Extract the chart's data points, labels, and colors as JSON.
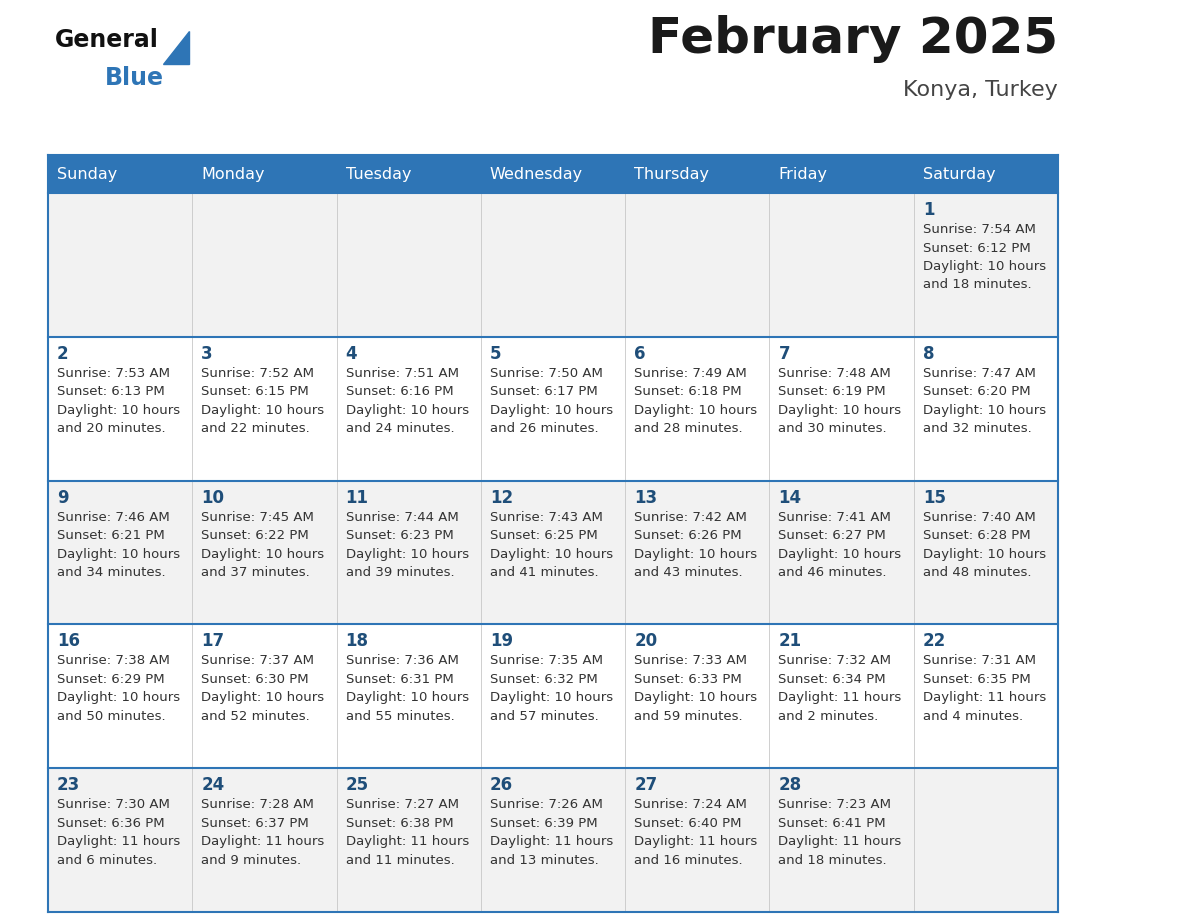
{
  "title": "February 2025",
  "location": "Konya, Turkey",
  "header_bg": "#2E75B6",
  "header_text": "#FFFFFF",
  "row_bg_odd": "#F2F2F2",
  "row_bg_even": "#FFFFFF",
  "border_color": "#2E75B6",
  "day_headers": [
    "Sunday",
    "Monday",
    "Tuesday",
    "Wednesday",
    "Thursday",
    "Friday",
    "Saturday"
  ],
  "title_color": "#1a1a1a",
  "location_color": "#444444",
  "day_num_color": "#1F4E79",
  "cell_text_color": "#333333",
  "calendar_data": [
    [
      null,
      null,
      null,
      null,
      null,
      null,
      {
        "day": "1",
        "sunrise": "7:54 AM",
        "sunset": "6:12 PM",
        "daylight_line1": "10 hours",
        "daylight_line2": "and 18 minutes."
      }
    ],
    [
      {
        "day": "2",
        "sunrise": "7:53 AM",
        "sunset": "6:13 PM",
        "daylight_line1": "10 hours",
        "daylight_line2": "and 20 minutes."
      },
      {
        "day": "3",
        "sunrise": "7:52 AM",
        "sunset": "6:15 PM",
        "daylight_line1": "10 hours",
        "daylight_line2": "and 22 minutes."
      },
      {
        "day": "4",
        "sunrise": "7:51 AM",
        "sunset": "6:16 PM",
        "daylight_line1": "10 hours",
        "daylight_line2": "and 24 minutes."
      },
      {
        "day": "5",
        "sunrise": "7:50 AM",
        "sunset": "6:17 PM",
        "daylight_line1": "10 hours",
        "daylight_line2": "and 26 minutes."
      },
      {
        "day": "6",
        "sunrise": "7:49 AM",
        "sunset": "6:18 PM",
        "daylight_line1": "10 hours",
        "daylight_line2": "and 28 minutes."
      },
      {
        "day": "7",
        "sunrise": "7:48 AM",
        "sunset": "6:19 PM",
        "daylight_line1": "10 hours",
        "daylight_line2": "and 30 minutes."
      },
      {
        "day": "8",
        "sunrise": "7:47 AM",
        "sunset": "6:20 PM",
        "daylight_line1": "10 hours",
        "daylight_line2": "and 32 minutes."
      }
    ],
    [
      {
        "day": "9",
        "sunrise": "7:46 AM",
        "sunset": "6:21 PM",
        "daylight_line1": "10 hours",
        "daylight_line2": "and 34 minutes."
      },
      {
        "day": "10",
        "sunrise": "7:45 AM",
        "sunset": "6:22 PM",
        "daylight_line1": "10 hours",
        "daylight_line2": "and 37 minutes."
      },
      {
        "day": "11",
        "sunrise": "7:44 AM",
        "sunset": "6:23 PM",
        "daylight_line1": "10 hours",
        "daylight_line2": "and 39 minutes."
      },
      {
        "day": "12",
        "sunrise": "7:43 AM",
        "sunset": "6:25 PM",
        "daylight_line1": "10 hours",
        "daylight_line2": "and 41 minutes."
      },
      {
        "day": "13",
        "sunrise": "7:42 AM",
        "sunset": "6:26 PM",
        "daylight_line1": "10 hours",
        "daylight_line2": "and 43 minutes."
      },
      {
        "day": "14",
        "sunrise": "7:41 AM",
        "sunset": "6:27 PM",
        "daylight_line1": "10 hours",
        "daylight_line2": "and 46 minutes."
      },
      {
        "day": "15",
        "sunrise": "7:40 AM",
        "sunset": "6:28 PM",
        "daylight_line1": "10 hours",
        "daylight_line2": "and 48 minutes."
      }
    ],
    [
      {
        "day": "16",
        "sunrise": "7:38 AM",
        "sunset": "6:29 PM",
        "daylight_line1": "10 hours",
        "daylight_line2": "and 50 minutes."
      },
      {
        "day": "17",
        "sunrise": "7:37 AM",
        "sunset": "6:30 PM",
        "daylight_line1": "10 hours",
        "daylight_line2": "and 52 minutes."
      },
      {
        "day": "18",
        "sunrise": "7:36 AM",
        "sunset": "6:31 PM",
        "daylight_line1": "10 hours",
        "daylight_line2": "and 55 minutes."
      },
      {
        "day": "19",
        "sunrise": "7:35 AM",
        "sunset": "6:32 PM",
        "daylight_line1": "10 hours",
        "daylight_line2": "and 57 minutes."
      },
      {
        "day": "20",
        "sunrise": "7:33 AM",
        "sunset": "6:33 PM",
        "daylight_line1": "10 hours",
        "daylight_line2": "and 59 minutes."
      },
      {
        "day": "21",
        "sunrise": "7:32 AM",
        "sunset": "6:34 PM",
        "daylight_line1": "11 hours",
        "daylight_line2": "and 2 minutes."
      },
      {
        "day": "22",
        "sunrise": "7:31 AM",
        "sunset": "6:35 PM",
        "daylight_line1": "11 hours",
        "daylight_line2": "and 4 minutes."
      }
    ],
    [
      {
        "day": "23",
        "sunrise": "7:30 AM",
        "sunset": "6:36 PM",
        "daylight_line1": "11 hours",
        "daylight_line2": "and 6 minutes."
      },
      {
        "day": "24",
        "sunrise": "7:28 AM",
        "sunset": "6:37 PM",
        "daylight_line1": "11 hours",
        "daylight_line2": "and 9 minutes."
      },
      {
        "day": "25",
        "sunrise": "7:27 AM",
        "sunset": "6:38 PM",
        "daylight_line1": "11 hours",
        "daylight_line2": "and 11 minutes."
      },
      {
        "day": "26",
        "sunrise": "7:26 AM",
        "sunset": "6:39 PM",
        "daylight_line1": "11 hours",
        "daylight_line2": "and 13 minutes."
      },
      {
        "day": "27",
        "sunrise": "7:24 AM",
        "sunset": "6:40 PM",
        "daylight_line1": "11 hours",
        "daylight_line2": "and 16 minutes."
      },
      {
        "day": "28",
        "sunrise": "7:23 AM",
        "sunset": "6:41 PM",
        "daylight_line1": "11 hours",
        "daylight_line2": "and 18 minutes."
      },
      null
    ]
  ]
}
